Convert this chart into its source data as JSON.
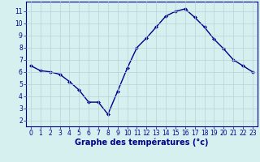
{
  "x": [
    0,
    1,
    2,
    3,
    4,
    5,
    6,
    7,
    8,
    9,
    10,
    11,
    12,
    13,
    14,
    15,
    16,
    17,
    18,
    19,
    20,
    21,
    22,
    23
  ],
  "y": [
    6.5,
    6.1,
    6.0,
    5.8,
    5.2,
    4.5,
    3.5,
    3.5,
    2.5,
    4.4,
    6.3,
    8.0,
    8.8,
    9.7,
    10.6,
    11.0,
    11.2,
    10.5,
    9.7,
    8.7,
    7.9,
    7.0,
    6.5,
    6.0
  ],
  "line_color": "#00008b",
  "marker": "D",
  "marker_size": 2,
  "bg_color": "#d6f0f0",
  "grid_color": "#b8d0d8",
  "axis_color": "#00008b",
  "xlabel": "Graphe des températures (°c)",
  "xlabel_fontsize": 7,
  "xlim": [
    -0.5,
    23.5
  ],
  "ylim": [
    1.5,
    11.8
  ],
  "yticks": [
    2,
    3,
    4,
    5,
    6,
    7,
    8,
    9,
    10,
    11
  ],
  "xticks": [
    0,
    1,
    2,
    3,
    4,
    5,
    6,
    7,
    8,
    9,
    10,
    11,
    12,
    13,
    14,
    15,
    16,
    17,
    18,
    19,
    20,
    21,
    22,
    23
  ],
  "tick_fontsize": 5.5,
  "line_width": 1.0
}
